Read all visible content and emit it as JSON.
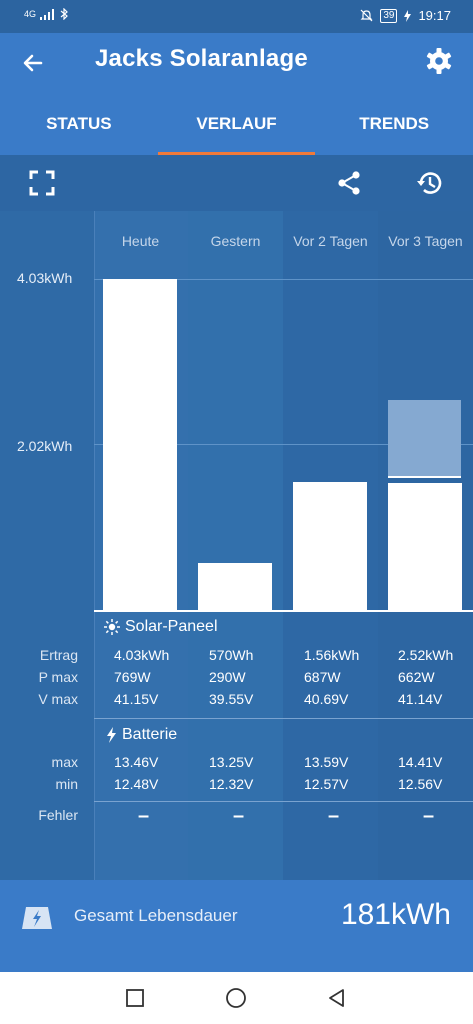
{
  "status_bar": {
    "network": "4G",
    "battery": "39",
    "time": "19:17"
  },
  "app": {
    "title": "Jacks Solaranlage"
  },
  "tabs": [
    {
      "label": "STATUS"
    },
    {
      "label": "VERLAUF"
    },
    {
      "label": "TRENDS"
    }
  ],
  "chart_data": {
    "type": "bar",
    "categories": [
      "Heute",
      "Gestern",
      "Vor 2 Tagen",
      "Vor 3 Tagen"
    ],
    "values": [
      4.03,
      0.57,
      1.56,
      2.52
    ],
    "unit": "kWh",
    "yticks": [
      "4.03kWh",
      "2.02kWh"
    ],
    "ylim": [
      0,
      4.03
    ]
  },
  "sections": {
    "solar": {
      "title": "Solar-Paneel",
      "rows": [
        {
          "label": "Ertrag",
          "values": [
            "4.03kWh",
            "570Wh",
            "1.56kWh",
            "2.52kWh"
          ]
        },
        {
          "label": "P max",
          "values": [
            "769W",
            "290W",
            "687W",
            "662W"
          ]
        },
        {
          "label": "V max",
          "values": [
            "41.15V",
            "39.55V",
            "40.69V",
            "41.14V"
          ]
        }
      ]
    },
    "battery": {
      "title": "Batterie",
      "rows": [
        {
          "label": "max",
          "values": [
            "13.46V",
            "13.25V",
            "13.59V",
            "14.41V"
          ]
        },
        {
          "label": "min",
          "values": [
            "12.48V",
            "12.32V",
            "12.57V",
            "12.56V"
          ]
        }
      ]
    },
    "errors": {
      "label": "Fehler",
      "values": [
        "–",
        "–",
        "–",
        "–"
      ]
    }
  },
  "footer": {
    "label": "Gesamt Lebensdauer",
    "value": "181kWh"
  },
  "icons": {
    "back": "arrow-left-icon",
    "settings": "gear-icon",
    "fullscreen": "fullscreen-icon",
    "share": "share-icon",
    "history": "history-icon",
    "sun": "sun-icon",
    "bolt": "lightning-icon",
    "lifetime": "solar-panel-icon"
  }
}
